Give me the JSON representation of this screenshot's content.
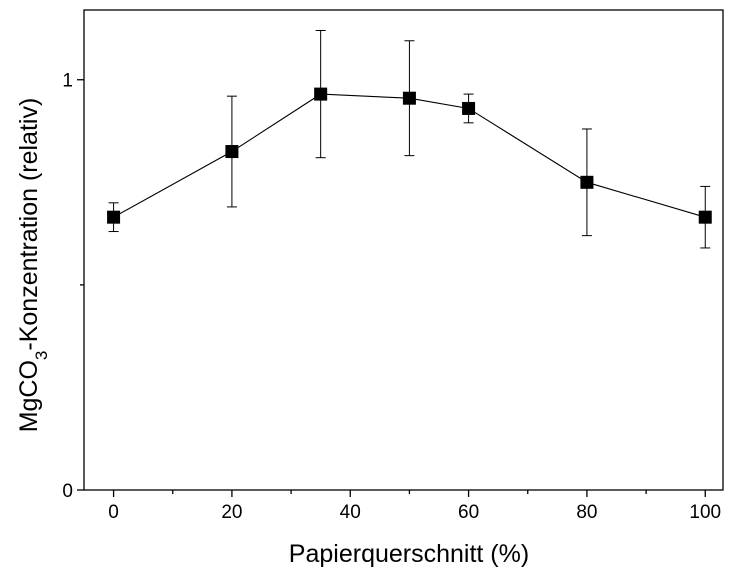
{
  "chart_data": {
    "type": "scatter",
    "connected": true,
    "marker": "square",
    "xlabel": "Papierquerschnitt (%)",
    "ylabel": {
      "prefix": "MgCO",
      "subscript": "3",
      "suffix": "-Konzentration (relativ)"
    },
    "xlim": [
      -5,
      103
    ],
    "ylim": [
      0,
      1.17
    ],
    "x_ticks": [
      0,
      20,
      40,
      60,
      80,
      100
    ],
    "x_minor_ticks": [
      10,
      30,
      50,
      70,
      90
    ],
    "y_tick_labels": [
      {
        "value": 0,
        "label": "0"
      },
      {
        "value": 1,
        "label": "1"
      }
    ],
    "y_minor_ticks": [
      0.5
    ],
    "grid": false,
    "legend": "none",
    "series": [
      {
        "x": [
          0,
          20,
          35,
          50,
          60,
          80,
          100
        ],
        "y": [
          0.665,
          0.825,
          0.965,
          0.955,
          0.93,
          0.75,
          0.665
        ],
        "err_low": [
          0.035,
          0.135,
          0.155,
          0.14,
          0.035,
          0.13,
          0.075
        ],
        "err_high": [
          0.035,
          0.135,
          0.155,
          0.14,
          0.035,
          0.13,
          0.075
        ]
      }
    ],
    "colors": {
      "line": "#000000",
      "marker": "#000000",
      "axis": "#000000"
    }
  }
}
